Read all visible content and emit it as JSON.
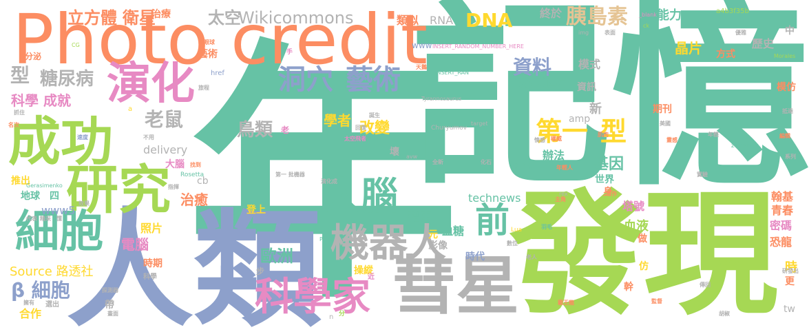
{
  "palette": {
    "teal": "#66c2a5",
    "orange": "#fc8d62",
    "blue": "#8da0cb",
    "pink": "#e78ac3",
    "green": "#a6d854",
    "yellow": "#ffd92f",
    "tan": "#e5c494",
    "gray": "#b3b3b3"
  },
  "words": [
    {
      "text": "年",
      "color": "teal"
    },
    {
      "text": "記憶",
      "color": "teal"
    },
    {
      "text": "發現",
      "color": "green"
    },
    {
      "text": "人類",
      "color": "blue"
    },
    {
      "text": "Photo credit",
      "color": "orange"
    },
    {
      "text": "彗星",
      "color": "gray"
    },
    {
      "text": "成功",
      "color": "green"
    },
    {
      "text": "研究",
      "color": "green"
    },
    {
      "text": "演化",
      "color": "pink"
    },
    {
      "text": "細胞",
      "color": "teal"
    },
    {
      "text": "機器人",
      "color": "gray"
    },
    {
      "text": "科學家",
      "color": "pink"
    },
    {
      "text": "人腦",
      "color": "teal"
    },
    {
      "text": "前",
      "color": "teal"
    },
    {
      "text": "洞穴",
      "color": "blue"
    },
    {
      "text": "藝術",
      "color": "blue"
    },
    {
      "text": "第一",
      "color": "yellow"
    },
    {
      "text": "型",
      "color": "yellow"
    },
    {
      "text": "胰島素",
      "color": "tan"
    },
    {
      "text": "DNA",
      "color": "yellow"
    },
    {
      "text": "型",
      "color": "gray"
    },
    {
      "text": "糖尿病",
      "color": "gray"
    },
    {
      "text": "β 細胞",
      "color": "blue"
    },
    {
      "text": "Wikicommons",
      "color": "gray"
    },
    {
      "text": "太空",
      "color": "gray"
    },
    {
      "text": "立方體",
      "color": "orange"
    },
    {
      "text": "衛星",
      "color": "orange"
    },
    {
      "text": "資料",
      "color": "blue"
    },
    {
      "text": "老鼠",
      "color": "gray"
    },
    {
      "text": "科學 成就",
      "color": "pink"
    },
    {
      "text": "鳥類",
      "color": "gray"
    },
    {
      "text": "改變",
      "color": "yellow"
    },
    {
      "text": "學者",
      "color": "yellow"
    },
    {
      "text": "歐洲",
      "color": "teal"
    },
    {
      "text": "Source 路透社",
      "color": "yellow"
    },
    {
      "text": "technews",
      "color": "teal"
    },
    {
      "text": "電腦",
      "color": "pink"
    },
    {
      "text": "治癒",
      "color": "orange"
    },
    {
      "text": "基因",
      "color": "teal"
    },
    {
      "text": "晶片",
      "color": "yellow"
    },
    {
      "text": "歷史",
      "color": "gray"
    },
    {
      "text": "能力",
      "color": "teal"
    },
    {
      "text": "終於",
      "color": "gray"
    },
    {
      "text": "RNA",
      "color": "gray"
    },
    {
      "text": "類似",
      "color": "orange"
    },
    {
      "text": "模式",
      "color": "gray"
    },
    {
      "text": "蘇拉威西島",
      "color": "teal"
    },
    {
      "text": "資訊",
      "color": "gray"
    },
    {
      "text": "新",
      "color": "gray"
    },
    {
      "text": "辦法",
      "color": "teal"
    },
    {
      "text": "世界",
      "color": "teal"
    },
    {
      "text": "amp",
      "color": "gray"
    },
    {
      "text": "php",
      "color": "teal"
    },
    {
      "text": "delivery",
      "color": "gray"
    },
    {
      "text": "www5",
      "color": "blue"
    },
    {
      "text": "地球",
      "color": "teal"
    },
    {
      "text": "四",
      "color": "teal"
    },
    {
      "text": "藉由",
      "color": "teal"
    },
    {
      "text": "血糖",
      "color": "teal"
    },
    {
      "text": "影像",
      "color": "gray"
    },
    {
      "text": "時代",
      "color": "blue"
    },
    {
      "text": "血液",
      "color": "green"
    },
    {
      "text": "塔號",
      "color": "pink"
    },
    {
      "text": "翰基",
      "color": "orange"
    },
    {
      "text": "青春",
      "color": "orange"
    },
    {
      "text": "密碼",
      "color": "pink"
    },
    {
      "text": "恐龍",
      "color": "orange"
    },
    {
      "text": "模仿",
      "color": "orange"
    },
    {
      "text": "時期",
      "color": "orange"
    },
    {
      "text": "照片",
      "color": "yellow"
    },
    {
      "text": "登上",
      "color": "yellow"
    },
    {
      "text": "大腦",
      "color": "pink"
    },
    {
      "text": "推出",
      "color": "yellow"
    },
    {
      "text": "合作",
      "color": "yellow"
    },
    {
      "text": "操縱",
      "color": "yellow"
    },
    {
      "text": "元",
      "color": "yellow"
    },
    {
      "text": "時",
      "color": "yellow"
    },
    {
      "text": "tw",
      "color": "gray"
    },
    {
      "text": "a4b3f35b",
      "color": "green"
    },
    {
      "text": "方式",
      "color": "orange"
    },
    {
      "text": "分泌",
      "color": "orange"
    },
    {
      "text": "中",
      "color": "gray"
    },
    {
      "text": "INSERT_RANDOM_NUMBER_HERE",
      "color": "pink"
    },
    {
      "text": "www",
      "color": "blue"
    },
    {
      "text": "Tyrannosaurus",
      "color": "gray"
    },
    {
      "text": "Churyumov",
      "color": "gray"
    },
    {
      "text": "Gerasimenko",
      "color": "teal"
    },
    {
      "text": "Rosetta",
      "color": "teal"
    },
    {
      "text": "zoneid",
      "color": "teal"
    },
    {
      "text": "Morales",
      "color": "green"
    },
    {
      "text": "href",
      "color": "blue"
    },
    {
      "text": "cb",
      "color": "gray"
    },
    {
      "text": "src",
      "color": "blue"
    },
    {
      "text": "Lua",
      "color": "yellow"
    },
    {
      "text": "target",
      "color": "gray"
    },
    {
      "text": "avw",
      "color": "gray"
    },
    {
      "text": "rex",
      "color": "gray"
    },
    {
      "text": "img",
      "color": "gray"
    },
    {
      "text": "ck",
      "color": "green"
    },
    {
      "text": "CG",
      "color": "green"
    },
    {
      "text": "_blank",
      "color": "pink"
    },
    {
      "text": "INSERT_RAN",
      "color": "teal"
    },
    {
      "text": "生物學家",
      "color": "green"
    },
    {
      "text": "天鵝",
      "color": "orange"
    },
    {
      "text": "全新",
      "color": "gray"
    },
    {
      "text": "化石",
      "color": "gray"
    },
    {
      "text": "羽毛",
      "color": "teal"
    },
    {
      "text": "老人",
      "color": "gray"
    },
    {
      "text": "身",
      "color": "orange"
    },
    {
      "text": "幹",
      "color": "orange"
    },
    {
      "text": "仿",
      "color": "yellow"
    },
    {
      "text": "更",
      "color": "orange"
    },
    {
      "text": "壞",
      "color": "gray"
    },
    {
      "text": "做",
      "color": "orange"
    },
    {
      "text": "老",
      "color": "pink"
    },
    {
      "text": "步",
      "color": "gray"
    },
    {
      "text": "帶",
      "color": "gray"
    },
    {
      "text": "近",
      "color": "pink"
    },
    {
      "text": "n",
      "color": "gray"
    },
    {
      "text": "分",
      "color": "green"
    },
    {
      "text": "a",
      "color": "yellow"
    },
    {
      "text": "P",
      "color": "teal"
    },
    {
      "text": "藝術",
      "color": "orange"
    },
    {
      "text": "治療",
      "color": "orange"
    },
    {
      "text": "數位",
      "color": "gray"
    },
    {
      "text": "主角",
      "color": "orange"
    },
    {
      "text": "探測器",
      "color": "gray"
    },
    {
      "text": "科學",
      "color": "gray"
    },
    {
      "text": "選出",
      "color": "gray"
    },
    {
      "text": "找到",
      "color": "orange"
    },
    {
      "text": "指揮",
      "color": "gray"
    },
    {
      "text": "效果",
      "color": "gray"
    },
    {
      "text": "代表",
      "color": "gray"
    },
    {
      "text": "精采",
      "color": "gray"
    },
    {
      "text": "懂",
      "color": "gray"
    },
    {
      "text": "名次",
      "color": "orange"
    },
    {
      "text": "抓住",
      "color": "gray"
    },
    {
      "text": "速度",
      "color": "blue"
    },
    {
      "text": "旅程",
      "color": "gray"
    },
    {
      "text": "不用",
      "color": "gray"
    },
    {
      "text": "誕生",
      "color": "gray"
    },
    {
      "text": "回復",
      "color": "gray"
    },
    {
      "text": "太空飛者",
      "color": "pink"
    },
    {
      "text": "第一 批機器",
      "color": "gray"
    },
    {
      "text": "演化成",
      "color": "gray"
    },
    {
      "text": "情感",
      "color": "gray"
    },
    {
      "text": "權威",
      "color": "orange"
    },
    {
      "text": "肌肉",
      "color": "orange"
    },
    {
      "text": "年輕人",
      "color": "orange"
    },
    {
      "text": "工作",
      "color": "orange"
    },
    {
      "text": "實驗",
      "color": "gray"
    },
    {
      "text": "美國",
      "color": "gray"
    },
    {
      "text": "期刊",
      "color": "orange"
    },
    {
      "text": "系列",
      "color": "gray"
    },
    {
      "text": "編輯",
      "color": "orange"
    },
    {
      "text": "年輕",
      "color": "gray"
    },
    {
      "text": "研發出",
      "color": "gray"
    },
    {
      "text": "傳回",
      "color": "gray"
    },
    {
      "text": "監督",
      "color": "orange"
    },
    {
      "text": "霸王龍",
      "color": "orange"
    },
    {
      "text": "胡椒",
      "color": "gray"
    },
    {
      "text": "表面",
      "color": "gray"
    },
    {
      "text": "優雅",
      "color": "gray"
    },
    {
      "text": "抵達",
      "color": "gray"
    },
    {
      "text": "擁有",
      "color": "gray"
    },
    {
      "text": "手",
      "color": "pink"
    },
    {
      "text": "眼球",
      "color": "orange"
    },
    {
      "text": "畫面",
      "color": "gray"
    },
    {
      "text": "靈感",
      "color": "orange"
    }
  ]
}
